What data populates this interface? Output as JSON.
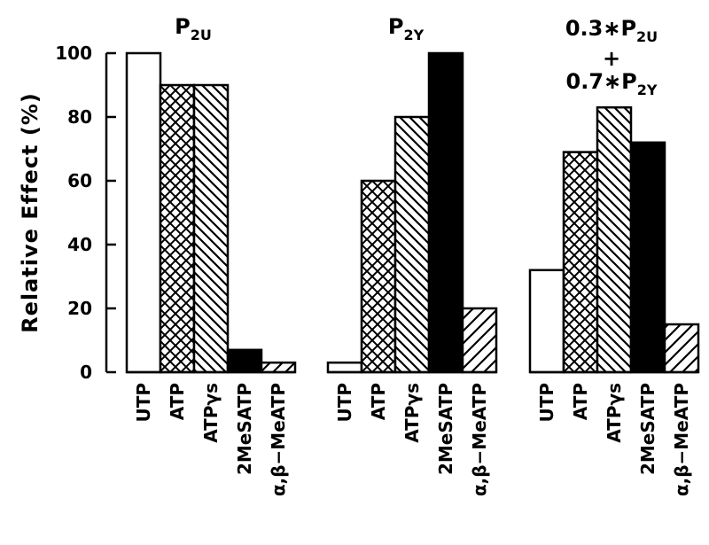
{
  "chart_data": {
    "type": "bar",
    "ylabel": "Relative Effect (%)",
    "ylim": [
      0,
      100
    ],
    "yticks": [
      0,
      20,
      40,
      60,
      80,
      100
    ],
    "grid": false,
    "categories": [
      "UTP",
      "ATP",
      "ATPγs",
      "2MeSATP",
      "α,β−MeATP"
    ],
    "category_fills": [
      "white",
      "crosshatch",
      "diagonal-dense",
      "black",
      "diagonal-sparse"
    ],
    "panels": [
      {
        "title": {
          "main": "P",
          "sub": "2U"
        },
        "values": [
          100,
          90,
          90,
          7,
          3
        ]
      },
      {
        "title": {
          "main": "P",
          "sub": "2Y"
        },
        "values": [
          3,
          60,
          80,
          100,
          20
        ]
      },
      {
        "title": {
          "line1": "0.3∗P",
          "line1_sub": "2U",
          "line2": "+",
          "line3": "0.7∗P",
          "line3_sub": "2Y"
        },
        "values": [
          32,
          69,
          83,
          72,
          15
        ]
      }
    ]
  }
}
